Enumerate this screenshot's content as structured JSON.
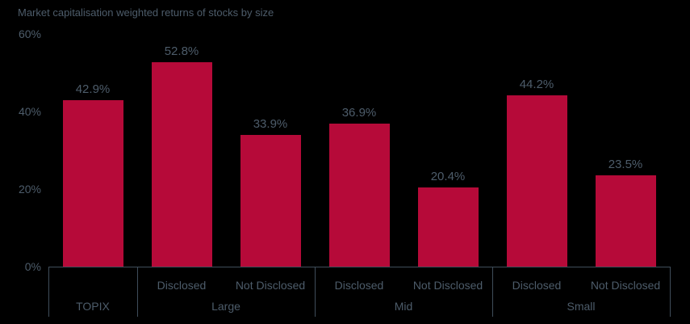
{
  "chart_data": {
    "type": "bar",
    "title": "Market capitalisation weighted returns of stocks by size",
    "xlabel": "",
    "ylabel": "",
    "ylim": [
      0,
      60
    ],
    "grid": false,
    "legend": "none",
    "yticks": [
      {
        "value": 0,
        "label": "0%"
      },
      {
        "value": 20,
        "label": "20%"
      },
      {
        "value": 40,
        "label": "40%"
      },
      {
        "value": 60,
        "label": "60%"
      }
    ],
    "groups": [
      {
        "label": "TOPIX",
        "bars": [
          {
            "sublabel": "",
            "value": 42.9,
            "display": "42.9%"
          }
        ]
      },
      {
        "label": "Large",
        "bars": [
          {
            "sublabel": "Disclosed",
            "value": 52.8,
            "display": "52.8%"
          },
          {
            "sublabel": "Not Disclosed",
            "value": 33.9,
            "display": "33.9%"
          }
        ]
      },
      {
        "label": "Mid",
        "bars": [
          {
            "sublabel": "Disclosed",
            "value": 36.9,
            "display": "36.9%"
          },
          {
            "sublabel": "Not Disclosed",
            "value": 20.4,
            "display": "20.4%"
          }
        ]
      },
      {
        "label": "Small",
        "bars": [
          {
            "sublabel": "Disclosed",
            "value": 44.2,
            "display": "44.2%"
          },
          {
            "sublabel": "Not Disclosed",
            "value": 23.5,
            "display": "23.5%"
          }
        ]
      }
    ],
    "colors": {
      "background": "#000000",
      "bar": "#b60a39",
      "text": "#4d5c6a",
      "axis_line": "#3f4d5a"
    }
  }
}
